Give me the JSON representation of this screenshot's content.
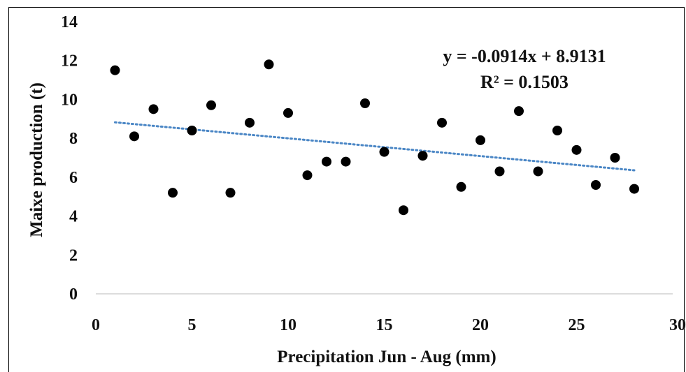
{
  "chart_data": {
    "type": "scatter",
    "title": "",
    "xlabel": "Precipitation  Jun - Aug (mm)",
    "ylabel": "Maixe  production  (t)",
    "xlim": [
      0,
      30
    ],
    "ylim": [
      0,
      14
    ],
    "x_ticks": [
      "0",
      "5",
      "10",
      "15",
      "20",
      "25",
      "30"
    ],
    "y_ticks": [
      "0",
      "2",
      "4",
      "6",
      "8",
      "10",
      "12",
      "14"
    ],
    "grid": false,
    "points": [
      {
        "x": 1,
        "y": 11.5
      },
      {
        "x": 2,
        "y": 8.1
      },
      {
        "x": 3,
        "y": 9.5
      },
      {
        "x": 4,
        "y": 5.2
      },
      {
        "x": 5,
        "y": 8.4
      },
      {
        "x": 6,
        "y": 9.7
      },
      {
        "x": 7,
        "y": 5.2
      },
      {
        "x": 8,
        "y": 8.8
      },
      {
        "x": 9,
        "y": 11.8
      },
      {
        "x": 10,
        "y": 9.3
      },
      {
        "x": 11,
        "y": 6.1
      },
      {
        "x": 12,
        "y": 6.8
      },
      {
        "x": 13,
        "y": 6.8
      },
      {
        "x": 14,
        "y": 9.8
      },
      {
        "x": 15,
        "y": 7.3
      },
      {
        "x": 16,
        "y": 4.3
      },
      {
        "x": 17,
        "y": 7.1
      },
      {
        "x": 18,
        "y": 8.8
      },
      {
        "x": 19,
        "y": 5.5
      },
      {
        "x": 20,
        "y": 7.9
      },
      {
        "x": 21,
        "y": 6.3
      },
      {
        "x": 22,
        "y": 9.4
      },
      {
        "x": 23,
        "y": 6.3
      },
      {
        "x": 24,
        "y": 8.4
      },
      {
        "x": 25,
        "y": 7.4
      },
      {
        "x": 26,
        "y": 5.6
      },
      {
        "x": 27,
        "y": 7.0
      },
      {
        "x": 28,
        "y": 5.4
      }
    ],
    "trendline": {
      "type": "linear",
      "slope": -0.0914,
      "intercept": 8.9131,
      "x_range": [
        1,
        28
      ],
      "style": "dotted",
      "color": "#4a86c5"
    },
    "equation_text": "y = -0.0914x + 8.9131",
    "r2_text": "R² = 0.1503",
    "marker_color": "#000000"
  }
}
